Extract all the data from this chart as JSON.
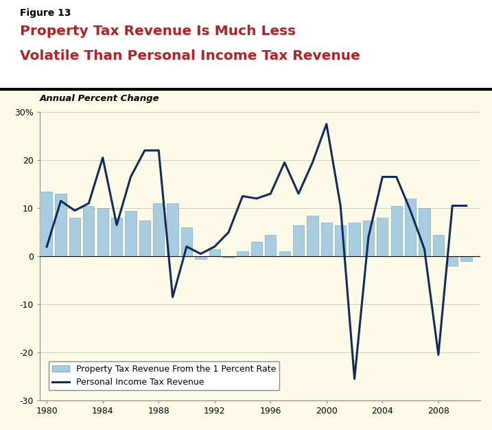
{
  "figure_label": "Figure 13",
  "title_line1": "Property Tax Revenue Is Much Less",
  "title_line2": "Volatile Than Personal Income Tax Revenue",
  "subtitle": "Annual Percent Change",
  "background_color": "#FDFAE8",
  "header_background": "#FFFFFF",
  "bar_color": "#A8CCE0",
  "bar_edge_color": "#7AADC8",
  "line_color": "#0D2B5E",
  "title_color": "#B22222",
  "figure_label_color": "#000000",
  "subtitle_color": "#000000",
  "ylim": [
    -30,
    30
  ],
  "yticks": [
    -30,
    -20,
    -10,
    0,
    10,
    20,
    30
  ],
  "ytick_labels": [
    "-30",
    "-20",
    "-10",
    "0",
    "10",
    "20",
    "30%"
  ],
  "xlabel_ticks": [
    1980,
    1984,
    1988,
    1992,
    1996,
    2000,
    2004,
    2008
  ],
  "years": [
    1980,
    1981,
    1982,
    1983,
    1984,
    1985,
    1986,
    1987,
    1988,
    1989,
    1990,
    1991,
    1992,
    1993,
    1994,
    1995,
    1996,
    1997,
    1998,
    1999,
    2000,
    2001,
    2002,
    2003,
    2004,
    2005,
    2006,
    2007,
    2008,
    2009,
    2010
  ],
  "bar_values": [
    13.5,
    13.0,
    8.0,
    10.5,
    10.0,
    8.0,
    9.5,
    7.5,
    11.0,
    11.0,
    6.0,
    -0.5,
    1.5,
    -0.3,
    1.0,
    3.0,
    4.5,
    1.0,
    6.5,
    8.5,
    7.0,
    6.5,
    7.0,
    7.5,
    8.0,
    10.5,
    12.0,
    10.0,
    4.5,
    -2.0,
    -1.0
  ],
  "line_values": [
    2.0,
    11.5,
    9.5,
    11.0,
    20.5,
    6.5,
    16.5,
    22.0,
    22.0,
    -8.5,
    2.0,
    0.5,
    2.0,
    5.0,
    12.5,
    12.0,
    13.0,
    19.5,
    13.0,
    19.5,
    27.5,
    10.5,
    -25.5,
    4.0,
    16.5,
    16.5,
    9.5,
    1.5,
    -20.5,
    10.5,
    10.5
  ],
  "legend_bar_label": "Property Tax Revenue From the 1 Percent Rate",
  "legend_line_label": "Personal Income Tax Revenue",
  "legend_box_color": "#FFFFFF",
  "legend_box_edge": "#888888",
  "xlim": [
    1979.5,
    2011.0
  ]
}
